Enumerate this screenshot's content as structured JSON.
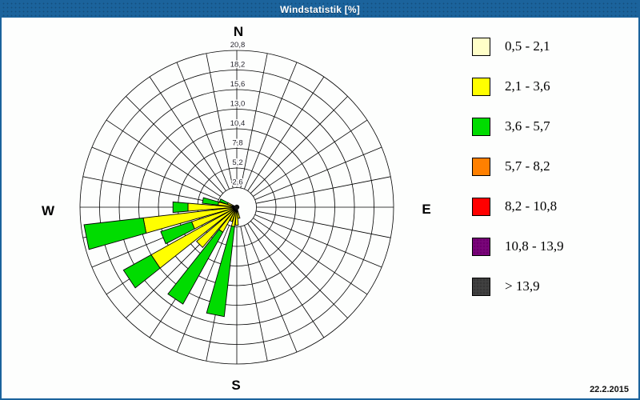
{
  "window": {
    "title": "Windstatistik [%]",
    "date": "22.2.2015",
    "colors": {
      "titlebar": "#1B639C",
      "background": "#FDFEFD",
      "grid": "#000000"
    }
  },
  "chart_data": {
    "type": "wind-rose",
    "title": "Windstatistik [%]",
    "unit": "%",
    "sector_count": 32,
    "sector_width_deg": 11.25,
    "petal_width_deg": 9.4,
    "radial_axis": {
      "ticks": [
        2.6,
        5.2,
        7.8,
        10.4,
        13.0,
        15.6,
        18.2,
        20.8
      ],
      "tick_labels": [
        "2,6",
        "5,2",
        "7,8",
        "10,4",
        "13,0",
        "15,6",
        "18,2",
        "20,8"
      ],
      "max": 20.8
    },
    "compass": {
      "north": "N",
      "east": "E",
      "south": "S",
      "west": "W"
    },
    "legend_title": "",
    "speed_bins": [
      {
        "label": "0,5 - 2,1",
        "color": "#FFFFC8",
        "dotted": false
      },
      {
        "label": "2,1 - 3,6",
        "color": "#FFFF00",
        "dotted": false
      },
      {
        "label": "3,6 - 5,7",
        "color": "#00DC00",
        "dotted": false
      },
      {
        "label": "5,7 - 8,2",
        "color": "#FF8000",
        "dotted": false
      },
      {
        "label": "8,2 - 10,8",
        "color": "#FF0000",
        "dotted": false
      },
      {
        "label": "10,8 - 13,9",
        "color": "#7A007A",
        "dotted": true
      },
      {
        "label": "> 13,9",
        "color": "#3E3E3E",
        "dotted": true
      }
    ],
    "petals": [
      {
        "dir_deg": 168.75,
        "segments": [
          {
            "bin": 1,
            "to": 1.5
          }
        ]
      },
      {
        "dir_deg": 180.0,
        "segments": [
          {
            "bin": 1,
            "to": 2.4
          }
        ]
      },
      {
        "dir_deg": 191.25,
        "segments": [
          {
            "bin": 1,
            "to": 2.6
          },
          {
            "bin": 2,
            "to": 14.6
          }
        ]
      },
      {
        "dir_deg": 202.5,
        "segments": [
          {
            "bin": 1,
            "to": 2.0
          }
        ]
      },
      {
        "dir_deg": 213.75,
        "segments": [
          {
            "bin": 1,
            "to": 3.8
          },
          {
            "bin": 2,
            "to": 14.7
          }
        ]
      },
      {
        "dir_deg": 225.0,
        "segments": [
          {
            "bin": 1,
            "to": 7.0
          }
        ]
      },
      {
        "dir_deg": 236.25,
        "segments": [
          {
            "bin": 1,
            "to": 13.0
          },
          {
            "bin": 2,
            "to": 17.2
          }
        ]
      },
      {
        "dir_deg": 247.5,
        "segments": [
          {
            "bin": 1,
            "to": 6.3
          },
          {
            "bin": 2,
            "to": 10.6
          }
        ]
      },
      {
        "dir_deg": 258.75,
        "segments": [
          {
            "bin": 1,
            "to": 12.5
          },
          {
            "bin": 2,
            "to": 20.4
          }
        ]
      },
      {
        "dir_deg": 270.0,
        "segments": [
          {
            "bin": 1,
            "to": 6.5
          },
          {
            "bin": 2,
            "to": 8.5
          }
        ]
      },
      {
        "dir_deg": 281.25,
        "segments": [
          {
            "bin": 1,
            "to": 2.5
          },
          {
            "bin": 2,
            "to": 4.6
          }
        ]
      },
      {
        "dir_deg": 292.5,
        "segments": [
          {
            "bin": 1,
            "to": 1.3
          },
          {
            "bin": 2,
            "to": 2.4
          }
        ]
      }
    ]
  }
}
